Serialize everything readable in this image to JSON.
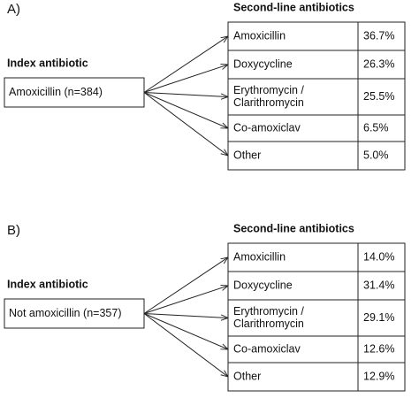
{
  "panels": [
    {
      "label": "A)",
      "index_heading": "Index antibiotic",
      "index_box": "Amoxicillin (n=384)",
      "second_heading": "Second-line antibiotics",
      "rows": [
        {
          "name": [
            "Amoxicillin"
          ],
          "percent": "36.7%"
        },
        {
          "name": [
            "Doxycycline"
          ],
          "percent": "26.3%"
        },
        {
          "name": [
            "Erythromycin /",
            "Clarithromycin"
          ],
          "percent": "25.5%"
        },
        {
          "name": [
            "Co-amoxiclav"
          ],
          "percent": "6.5%"
        },
        {
          "name": [
            "Other"
          ],
          "percent": "5.0%"
        }
      ]
    },
    {
      "label": "B)",
      "index_heading": "Index antibiotic",
      "index_box": "Not amoxicillin (n=357)",
      "second_heading": "Second-line antibiotics",
      "rows": [
        {
          "name": [
            "Amoxicillin"
          ],
          "percent": "14.0%"
        },
        {
          "name": [
            "Doxycycline"
          ],
          "percent": "31.4%"
        },
        {
          "name": [
            "Erythromycin /",
            "Clarithromycin"
          ],
          "percent": "29.1%"
        },
        {
          "name": [
            "Co-amoxiclav"
          ],
          "percent": "12.6%"
        },
        {
          "name": [
            "Other"
          ],
          "percent": "12.9%"
        }
      ]
    }
  ]
}
